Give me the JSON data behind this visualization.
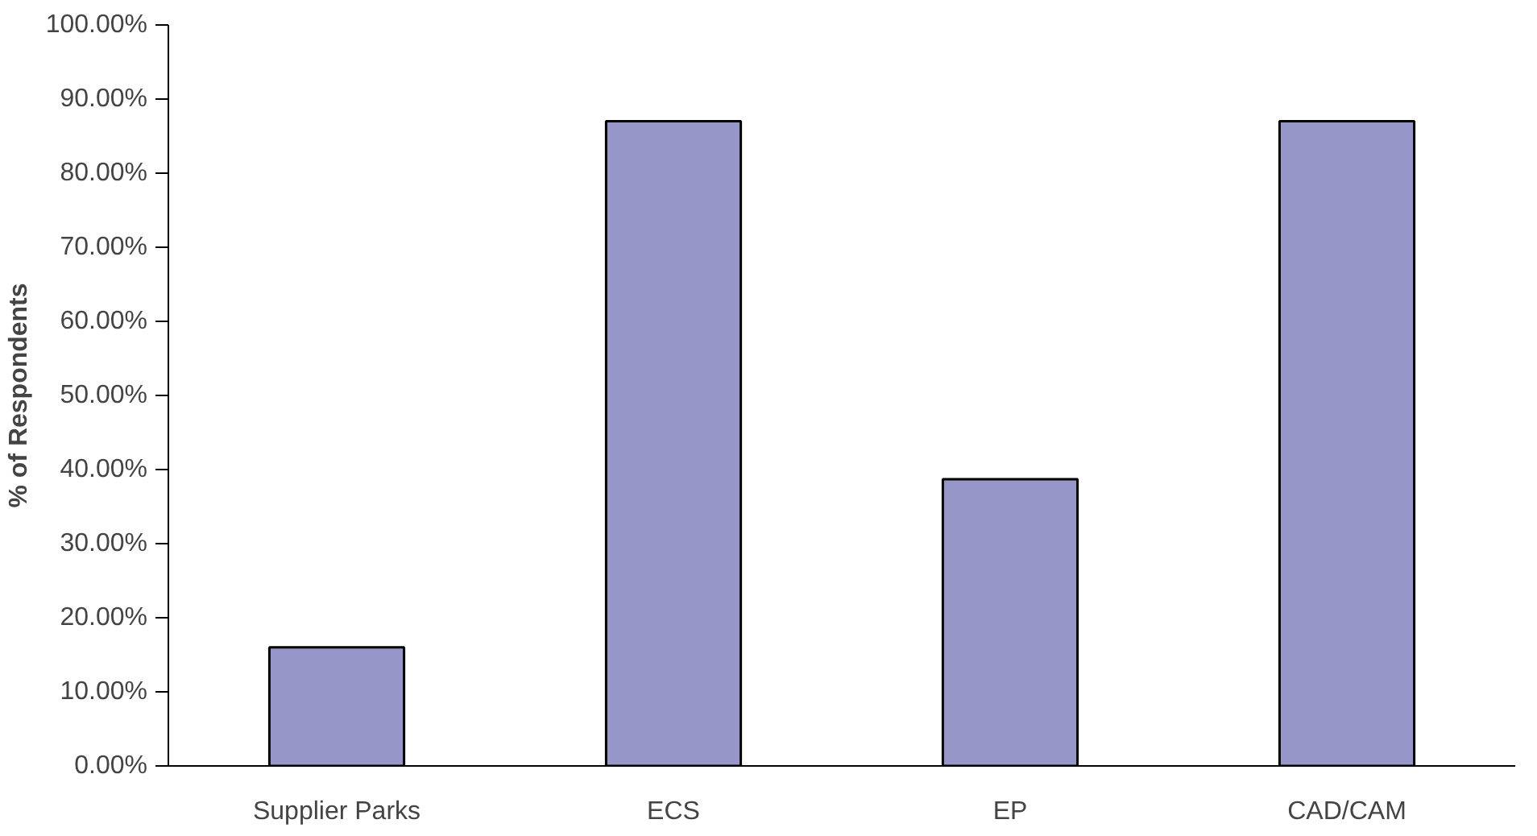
{
  "chart_data": {
    "type": "bar",
    "ylabel": "% of Respondents",
    "categories": [
      "Supplier Parks",
      "ECS",
      "EP",
      "CAD/CAM"
    ],
    "values": [
      16.0,
      87.0,
      38.7,
      87.0
    ],
    "color": "#9696c8",
    "ylim": [
      0,
      100
    ],
    "yticks": [
      {
        "value": 0,
        "label": "0.00%"
      },
      {
        "value": 10,
        "label": "10.00%"
      },
      {
        "value": 20,
        "label": "20.00%"
      },
      {
        "value": 30,
        "label": "30.00%"
      },
      {
        "value": 40,
        "label": "40.00%"
      },
      {
        "value": 50,
        "label": "50.00%"
      },
      {
        "value": 60,
        "label": "60.00%"
      },
      {
        "value": 70,
        "label": "70.00%"
      },
      {
        "value": 80,
        "label": "80.00%"
      },
      {
        "value": 90,
        "label": "90.00%"
      },
      {
        "value": 100,
        "label": "100.00%"
      }
    ],
    "grid": false
  }
}
